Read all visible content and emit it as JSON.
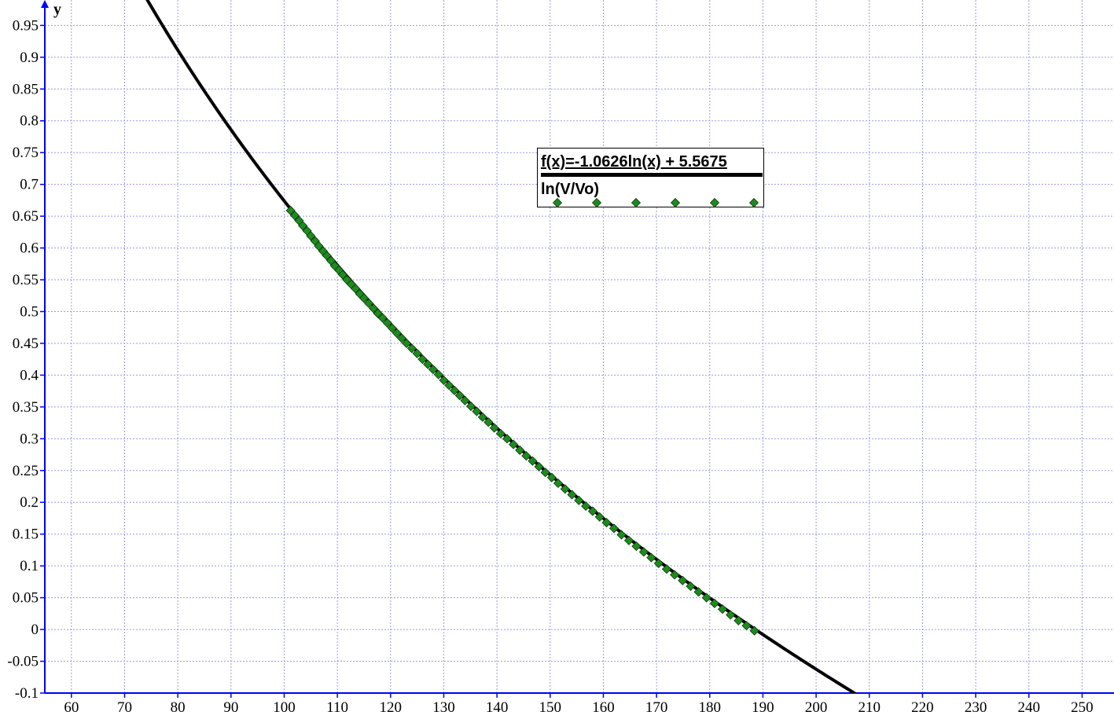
{
  "chart_data": {
    "type": "scatter",
    "title": "",
    "xlabel": "",
    "ylabel": "y",
    "xlim": [
      55,
      256
    ],
    "ylim": [
      -0.1,
      0.99
    ],
    "x_ticks": [
      60,
      70,
      80,
      90,
      100,
      110,
      120,
      130,
      140,
      150,
      160,
      170,
      180,
      190,
      200,
      210,
      220,
      230,
      240,
      250
    ],
    "y_ticks": [
      -0.1,
      -0.05,
      0,
      0.05,
      0.1,
      0.15,
      0.2,
      0.25,
      0.3,
      0.35,
      0.4,
      0.45,
      0.5,
      0.55,
      0.6,
      0.65,
      0.7,
      0.75,
      0.8,
      0.85,
      0.9,
      0.95
    ],
    "y_tick_labels": [
      "-0.1",
      "-0.05",
      "0",
      "0.05",
      "0.1",
      "0.15",
      "0.2",
      "0.25",
      "0.3",
      "0.35",
      "0.4",
      "0.45",
      "0.5",
      "0.55",
      "0.6",
      "0.65",
      "0.7",
      "0.75",
      "0.8",
      "0.85",
      "0.9",
      "0.95"
    ],
    "grid": true,
    "legend_position": "upper-center",
    "series": [
      {
        "name": "f(x)=-1.0626ln(x) + 5.5675",
        "kind": "line",
        "color": "#000000",
        "function": {
          "a": -1.0626,
          "b": 5.5675,
          "form": "a*ln(x)+b"
        },
        "x_range": [
          73.5,
          207.5
        ]
      },
      {
        "name": "ln(V/Vo)",
        "kind": "scatter",
        "marker": "diamond",
        "color": "#1e8a1e",
        "x": [
          101.2,
          102.0,
          102.8,
          103.5,
          104.3,
          105.0,
          105.8,
          106.5,
          107.3,
          108.0,
          108.8,
          109.5,
          110.3,
          111.0,
          111.8,
          112.6,
          113.4,
          114.2,
          115.0,
          115.9,
          116.8,
          117.6,
          118.5,
          119.4,
          120.3,
          121.2,
          122.1,
          123.0,
          124.0,
          125.0,
          126.0,
          127.0,
          128.0,
          129.0,
          130.0,
          131.0,
          132.0,
          133.0,
          134.0,
          135.1,
          136.2,
          137.3,
          138.4,
          139.5,
          140.7,
          141.9,
          143.1,
          144.3,
          145.5,
          146.7,
          147.9,
          149.1,
          150.3,
          151.5,
          152.8,
          154.1,
          155.4,
          156.7,
          158.0,
          159.3,
          160.6,
          162.0,
          163.4,
          164.8,
          166.2,
          167.6,
          169.0,
          170.4,
          171.9,
          173.4,
          174.9,
          176.4,
          177.9,
          179.4,
          180.9,
          182.4,
          183.9,
          185.4,
          186.9,
          188.4
        ],
        "y": [
          0.659,
          0.651,
          0.643,
          0.635,
          0.627,
          0.619,
          0.611,
          0.603,
          0.595,
          0.588,
          0.58,
          0.572,
          0.565,
          0.558,
          0.55,
          0.543,
          0.536,
          0.528,
          0.521,
          0.513,
          0.505,
          0.497,
          0.49,
          0.482,
          0.474,
          0.466,
          0.458,
          0.45,
          0.442,
          0.434,
          0.425,
          0.417,
          0.409,
          0.401,
          0.392,
          0.384,
          0.376,
          0.368,
          0.36,
          0.351,
          0.343,
          0.334,
          0.326,
          0.317,
          0.308,
          0.3,
          0.291,
          0.282,
          0.273,
          0.265,
          0.256,
          0.247,
          0.239,
          0.23,
          0.221,
          0.212,
          0.203,
          0.194,
          0.186,
          0.177,
          0.168,
          0.159,
          0.149,
          0.14,
          0.131,
          0.122,
          0.113,
          0.104,
          0.095,
          0.086,
          0.077,
          0.068,
          0.059,
          0.05,
          0.041,
          0.032,
          0.023,
          0.014,
          0.006,
          -0.002
        ]
      }
    ]
  },
  "legend": {
    "fit_label": "f(x)=-1.0626ln(x) + 5.5675",
    "series_label": "ln(V/Vo)"
  }
}
